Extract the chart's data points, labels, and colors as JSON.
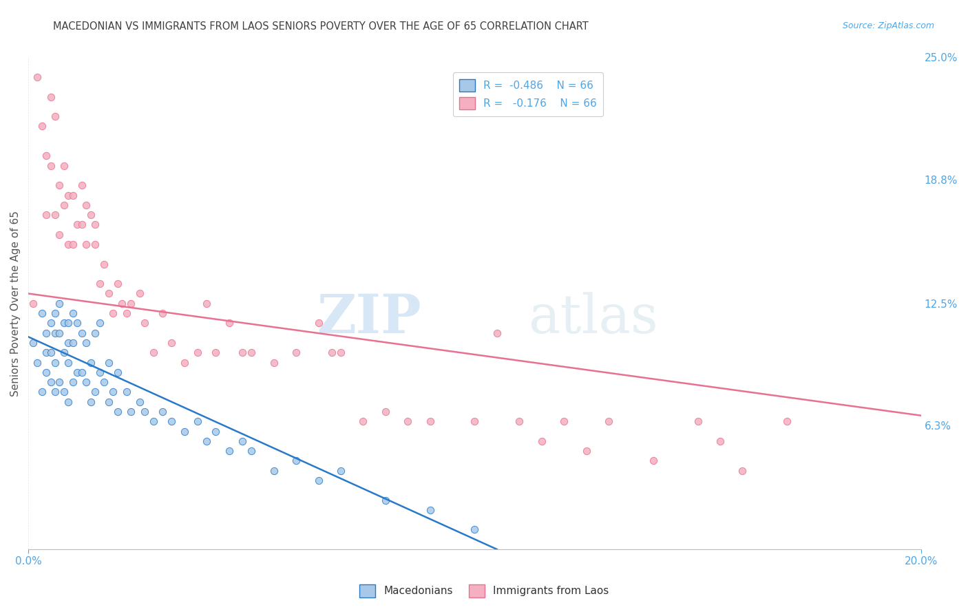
{
  "title": "MACEDONIAN VS IMMIGRANTS FROM LAOS SENIORS POVERTY OVER THE AGE OF 65 CORRELATION CHART",
  "source": "Source: ZipAtlas.com",
  "ylabel": "Seniors Poverty Over the Age of 65",
  "xlim": [
    0.0,
    0.2
  ],
  "ylim": [
    0.0,
    0.25
  ],
  "y_ticks_right": [
    0.25,
    0.188,
    0.125,
    0.063,
    0.0
  ],
  "y_tick_labels_right": [
    "25.0%",
    "18.8%",
    "12.5%",
    "6.3%",
    ""
  ],
  "macedonian_color": "#a8c8e8",
  "laos_color": "#f4b0c0",
  "line_macedonian_color": "#2979c8",
  "line_laos_color": "#e87090",
  "scatter_size": 55,
  "scatter_alpha": 0.85,
  "background_color": "#ffffff",
  "grid_color": "#cccccc",
  "title_color": "#404040",
  "axis_label_color": "#555555",
  "tick_color": "#4da6e8",
  "watermark_color": "#d0e8f8",
  "macedonian_x": [
    0.001,
    0.002,
    0.003,
    0.003,
    0.004,
    0.004,
    0.004,
    0.005,
    0.005,
    0.005,
    0.006,
    0.006,
    0.006,
    0.006,
    0.007,
    0.007,
    0.007,
    0.008,
    0.008,
    0.008,
    0.009,
    0.009,
    0.009,
    0.009,
    0.01,
    0.01,
    0.01,
    0.011,
    0.011,
    0.012,
    0.012,
    0.013,
    0.013,
    0.014,
    0.014,
    0.015,
    0.015,
    0.016,
    0.016,
    0.017,
    0.018,
    0.018,
    0.019,
    0.02,
    0.02,
    0.022,
    0.023,
    0.025,
    0.026,
    0.028,
    0.03,
    0.032,
    0.035,
    0.038,
    0.04,
    0.042,
    0.045,
    0.048,
    0.05,
    0.055,
    0.06,
    0.065,
    0.07,
    0.08,
    0.09,
    0.1
  ],
  "macedonian_y": [
    0.105,
    0.095,
    0.12,
    0.08,
    0.11,
    0.1,
    0.09,
    0.115,
    0.1,
    0.085,
    0.12,
    0.11,
    0.095,
    0.08,
    0.125,
    0.11,
    0.085,
    0.115,
    0.1,
    0.08,
    0.115,
    0.105,
    0.095,
    0.075,
    0.12,
    0.105,
    0.085,
    0.115,
    0.09,
    0.11,
    0.09,
    0.105,
    0.085,
    0.095,
    0.075,
    0.11,
    0.08,
    0.115,
    0.09,
    0.085,
    0.095,
    0.075,
    0.08,
    0.09,
    0.07,
    0.08,
    0.07,
    0.075,
    0.07,
    0.065,
    0.07,
    0.065,
    0.06,
    0.065,
    0.055,
    0.06,
    0.05,
    0.055,
    0.05,
    0.04,
    0.045,
    0.035,
    0.04,
    0.025,
    0.02,
    0.01
  ],
  "laos_x": [
    0.001,
    0.002,
    0.003,
    0.004,
    0.004,
    0.005,
    0.005,
    0.006,
    0.006,
    0.007,
    0.007,
    0.008,
    0.008,
    0.009,
    0.009,
    0.01,
    0.01,
    0.011,
    0.012,
    0.012,
    0.013,
    0.013,
    0.014,
    0.015,
    0.015,
    0.016,
    0.017,
    0.018,
    0.019,
    0.02,
    0.021,
    0.022,
    0.023,
    0.025,
    0.026,
    0.028,
    0.03,
    0.032,
    0.035,
    0.038,
    0.04,
    0.042,
    0.045,
    0.048,
    0.05,
    0.055,
    0.06,
    0.065,
    0.068,
    0.07,
    0.075,
    0.08,
    0.085,
    0.09,
    0.1,
    0.105,
    0.11,
    0.115,
    0.12,
    0.125,
    0.13,
    0.14,
    0.15,
    0.155,
    0.16,
    0.17
  ],
  "laos_y": [
    0.125,
    0.24,
    0.215,
    0.2,
    0.17,
    0.23,
    0.195,
    0.22,
    0.17,
    0.185,
    0.16,
    0.195,
    0.175,
    0.18,
    0.155,
    0.18,
    0.155,
    0.165,
    0.185,
    0.165,
    0.155,
    0.175,
    0.17,
    0.165,
    0.155,
    0.135,
    0.145,
    0.13,
    0.12,
    0.135,
    0.125,
    0.12,
    0.125,
    0.13,
    0.115,
    0.1,
    0.12,
    0.105,
    0.095,
    0.1,
    0.125,
    0.1,
    0.115,
    0.1,
    0.1,
    0.095,
    0.1,
    0.115,
    0.1,
    0.1,
    0.065,
    0.07,
    0.065,
    0.065,
    0.065,
    0.11,
    0.065,
    0.055,
    0.065,
    0.05,
    0.065,
    0.045,
    0.065,
    0.055,
    0.04,
    0.065
  ],
  "mac_line_x0": 0.0,
  "mac_line_x1": 0.105,
  "mac_line_y0": 0.108,
  "mac_line_y1": 0.0,
  "laos_line_x0": 0.0,
  "laos_line_x1": 0.2,
  "laos_line_y0": 0.13,
  "laos_line_y1": 0.068
}
